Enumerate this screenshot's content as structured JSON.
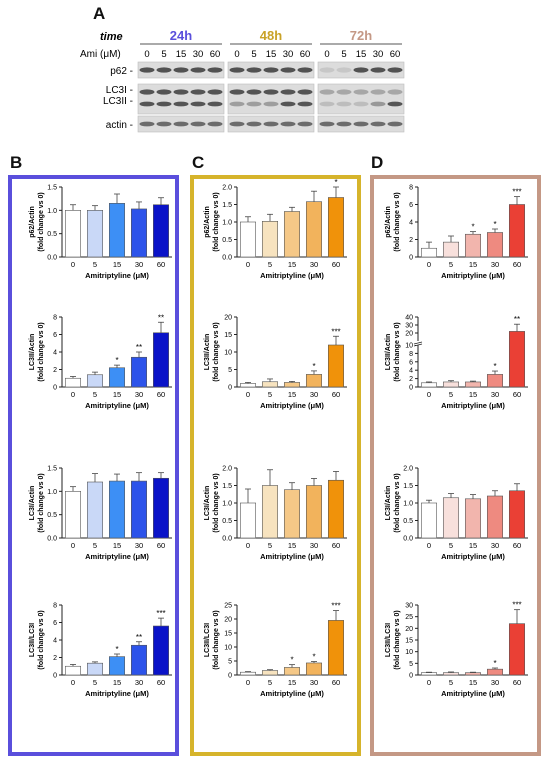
{
  "figure": {
    "panel_labels": [
      "A",
      "B",
      "C",
      "D"
    ],
    "colors": {
      "b": "#5a4fdc",
      "c": "#d6b42b",
      "d": "#c49885"
    }
  },
  "blot": {
    "time_label": "time",
    "ami_label": "Ami (μM)",
    "groups": [
      {
        "label": "24h",
        "color": "#5a4fdc"
      },
      {
        "label": "48h",
        "color": "#c9a227"
      },
      {
        "label": "72h",
        "color": "#c49885"
      }
    ],
    "doses": [
      "0",
      "5",
      "15",
      "30",
      "60"
    ],
    "rows": [
      "p62 -",
      "LC3I -",
      "LC3II -",
      "actin -"
    ]
  },
  "chart_data": [
    {
      "panel": "B",
      "type": "bar",
      "title": "",
      "xlabel": "Amitriptyline (μM)",
      "ylabel": "p62/Actin",
      "ylabel2": "(fold change vs 0)",
      "categories": [
        "0",
        "5",
        "15",
        "30",
        "60"
      ],
      "values": [
        1.0,
        1.0,
        1.15,
        1.03,
        1.12
      ],
      "errors": [
        0.12,
        0.1,
        0.2,
        0.15,
        0.15
      ],
      "sig": [
        "",
        "",
        "",
        "",
        ""
      ],
      "ylim": [
        0,
        1.5
      ],
      "yticks": [
        "0.0",
        "0.5",
        "1.0",
        "1.5"
      ],
      "colors": [
        "#ffffff",
        "#c9d8f7",
        "#3d8ff5",
        "#2c53ea",
        "#0a13c8"
      ]
    },
    {
      "panel": "B",
      "type": "bar",
      "title": "",
      "xlabel": "Amitriptyline (μM)",
      "ylabel": "LC3II/Actin",
      "ylabel2": "(fold change vs 0)",
      "categories": [
        "0",
        "5",
        "15",
        "30",
        "60"
      ],
      "values": [
        1.0,
        1.4,
        2.2,
        3.4,
        6.2
      ],
      "errors": [
        0.2,
        0.3,
        0.3,
        0.6,
        1.2
      ],
      "sig": [
        "",
        "",
        "*",
        "**",
        "**"
      ],
      "ylim": [
        0,
        8
      ],
      "yticks": [
        "0",
        "2",
        "4",
        "6",
        "8"
      ],
      "colors": [
        "#ffffff",
        "#c9d8f7",
        "#3d8ff5",
        "#2c53ea",
        "#0a13c8"
      ]
    },
    {
      "panel": "B",
      "type": "bar",
      "title": "",
      "xlabel": "Amitriptyline (μM)",
      "ylabel": "LC3I/Actin",
      "ylabel2": "(fold change vs 0)",
      "categories": [
        "0",
        "5",
        "15",
        "30",
        "60"
      ],
      "values": [
        1.0,
        1.2,
        1.22,
        1.22,
        1.28
      ],
      "errors": [
        0.1,
        0.18,
        0.15,
        0.18,
        0.12
      ],
      "sig": [
        "",
        "",
        "",
        "",
        ""
      ],
      "ylim": [
        0,
        1.5
      ],
      "yticks": [
        "0.0",
        "0.5",
        "1.0",
        "1.5"
      ],
      "colors": [
        "#ffffff",
        "#c9d8f7",
        "#3d8ff5",
        "#2c53ea",
        "#0a13c8"
      ]
    },
    {
      "panel": "B",
      "type": "bar",
      "title": "",
      "xlabel": "Amitriptyline (μM)",
      "ylabel": "LC3II/LC3I",
      "ylabel2": "(fold change vs 0)",
      "categories": [
        "0",
        "5",
        "15",
        "30",
        "60"
      ],
      "values": [
        1.0,
        1.35,
        2.1,
        3.4,
        5.6
      ],
      "errors": [
        0.2,
        0.15,
        0.3,
        0.4,
        0.9
      ],
      "sig": [
        "",
        "",
        "*",
        "**",
        "***"
      ],
      "ylim": [
        0,
        8
      ],
      "yticks": [
        "0",
        "2",
        "4",
        "6",
        "8"
      ],
      "colors": [
        "#ffffff",
        "#c9d8f7",
        "#3d8ff5",
        "#2c53ea",
        "#0a13c8"
      ]
    },
    {
      "panel": "C",
      "type": "bar",
      "title": "",
      "xlabel": "Amitriptyline (μM)",
      "ylabel": "p62/Actin",
      "ylabel2": "(fold change vs 0)",
      "categories": [
        "0",
        "5",
        "15",
        "30",
        "60"
      ],
      "values": [
        1.0,
        1.02,
        1.3,
        1.58,
        1.7
      ],
      "errors": [
        0.15,
        0.2,
        0.12,
        0.3,
        0.3
      ],
      "sig": [
        "",
        "",
        "",
        "",
        "*"
      ],
      "ylim": [
        0,
        2.0
      ],
      "yticks": [
        "0.0",
        "0.5",
        "1.0",
        "1.5",
        "2.0"
      ],
      "colors": [
        "#ffffff",
        "#f7e3bf",
        "#f5c887",
        "#f2b35c",
        "#f0920a"
      ]
    },
    {
      "panel": "C",
      "type": "bar",
      "title": "",
      "xlabel": "Amitriptyline (μM)",
      "ylabel": "LC3II/Actin",
      "ylabel2": "(fold change vs 0)",
      "categories": [
        "0",
        "5",
        "15",
        "30",
        "60"
      ],
      "values": [
        1.0,
        1.5,
        1.3,
        3.6,
        12.0
      ],
      "errors": [
        0.3,
        0.8,
        0.3,
        1.0,
        2.5
      ],
      "sig": [
        "",
        "",
        "",
        "*",
        "***"
      ],
      "ylim": [
        0,
        20
      ],
      "yticks": [
        "0",
        "5",
        "10",
        "15",
        "20"
      ],
      "colors": [
        "#ffffff",
        "#f7e3bf",
        "#f5c887",
        "#f2b35c",
        "#f0920a"
      ]
    },
    {
      "panel": "C",
      "type": "bar",
      "title": "",
      "xlabel": "Amitriptyline (μM)",
      "ylabel": "LC3I/Actin",
      "ylabel2": "(fold change vs 0)",
      "categories": [
        "0",
        "5",
        "15",
        "30",
        "60"
      ],
      "values": [
        1.0,
        1.5,
        1.38,
        1.5,
        1.65
      ],
      "errors": [
        0.4,
        0.45,
        0.2,
        0.2,
        0.25
      ],
      "sig": [
        "",
        "",
        "",
        "",
        ""
      ],
      "ylim": [
        0,
        2.0
      ],
      "yticks": [
        "0.0",
        "0.5",
        "1.0",
        "1.5",
        "2.0"
      ],
      "colors": [
        "#ffffff",
        "#f7e3bf",
        "#f5c887",
        "#f2b35c",
        "#f0920a"
      ]
    },
    {
      "panel": "C",
      "type": "bar",
      "title": "",
      "xlabel": "Amitriptyline (μM)",
      "ylabel": "LC3II/LC3I",
      "ylabel2": "(fold change vs 0)",
      "categories": [
        "0",
        "5",
        "15",
        "30",
        "60"
      ],
      "values": [
        1.0,
        1.6,
        2.7,
        4.3,
        19.5
      ],
      "errors": [
        0.2,
        0.3,
        1.0,
        0.5,
        3.5
      ],
      "sig": [
        "",
        "",
        "*",
        "*",
        "***"
      ],
      "ylim": [
        0,
        25
      ],
      "yticks": [
        "0",
        "5",
        "10",
        "15",
        "20",
        "25"
      ],
      "colors": [
        "#ffffff",
        "#f7e3bf",
        "#f5c887",
        "#f2b35c",
        "#f0920a"
      ]
    },
    {
      "panel": "D",
      "type": "bar",
      "title": "",
      "xlabel": "Amitriptyline (μM)",
      "ylabel": "p62/Actin",
      "ylabel2": "(fold change vs 0)",
      "categories": [
        "0",
        "5",
        "15",
        "30",
        "60"
      ],
      "values": [
        1.0,
        1.7,
        2.6,
        2.8,
        6.0
      ],
      "errors": [
        0.7,
        0.7,
        0.3,
        0.4,
        0.9
      ],
      "sig": [
        "",
        "",
        "*",
        "*",
        "***"
      ],
      "ylim": [
        0,
        8
      ],
      "yticks": [
        "0",
        "2",
        "4",
        "6",
        "8"
      ],
      "colors": [
        "#ffffff",
        "#f8e0dc",
        "#f2b5ad",
        "#ee8a80",
        "#ea4035"
      ]
    },
    {
      "panel": "D",
      "type": "bar",
      "title": "",
      "xlabel": "Amitriptyline (μM)",
      "ylabel": "LC3II/Actin",
      "ylabel2": "(fold change vs 0)",
      "categories": [
        "0",
        "5",
        "15",
        "30",
        "60"
      ],
      "values": [
        1.0,
        1.2,
        1.2,
        3.0,
        22.0
      ],
      "errors": [
        0.2,
        0.3,
        0.2,
        0.8,
        9.0
      ],
      "sig": [
        "",
        "",
        "",
        "*",
        "**"
      ],
      "ylim": [
        0,
        40
      ],
      "yticks": [
        "0",
        "2",
        "4",
        "6",
        "8",
        "10",
        "20",
        "30",
        "40"
      ],
      "break": {
        "at": 10,
        "frac": 0.6
      },
      "colors": [
        "#ffffff",
        "#f8e0dc",
        "#f2b5ad",
        "#ee8a80",
        "#ea4035"
      ]
    },
    {
      "panel": "D",
      "type": "bar",
      "title": "",
      "xlabel": "Amitriptyline (μM)",
      "ylabel": "LC3I/Actin",
      "ylabel2": "(fold change vs 0)",
      "categories": [
        "0",
        "5",
        "15",
        "30",
        "60"
      ],
      "values": [
        1.0,
        1.15,
        1.12,
        1.2,
        1.35
      ],
      "errors": [
        0.08,
        0.12,
        0.12,
        0.15,
        0.2
      ],
      "sig": [
        "",
        "",
        "",
        "",
        ""
      ],
      "ylim": [
        0,
        2.0
      ],
      "yticks": [
        "0.0",
        "0.5",
        "1.0",
        "1.5",
        "2.0"
      ],
      "colors": [
        "#ffffff",
        "#f8e0dc",
        "#f2b5ad",
        "#ee8a80",
        "#ea4035"
      ]
    },
    {
      "panel": "D",
      "type": "bar",
      "title": "",
      "xlabel": "Amitriptyline (μM)",
      "ylabel": "LC3II/LC3I",
      "ylabel2": "(fold change vs 0)",
      "categories": [
        "0",
        "5",
        "15",
        "30",
        "60"
      ],
      "values": [
        1.0,
        1.0,
        1.0,
        2.5,
        22.0
      ],
      "errors": [
        0.2,
        0.3,
        0.2,
        0.5,
        6.0
      ],
      "sig": [
        "",
        "",
        "",
        "*",
        "***"
      ],
      "ylim": [
        0,
        30
      ],
      "yticks": [
        "0",
        "5",
        "10",
        "15",
        "20",
        "25",
        "30"
      ],
      "colors": [
        "#ffffff",
        "#f8e0dc",
        "#f2b5ad",
        "#ee8a80",
        "#ea4035"
      ]
    }
  ]
}
